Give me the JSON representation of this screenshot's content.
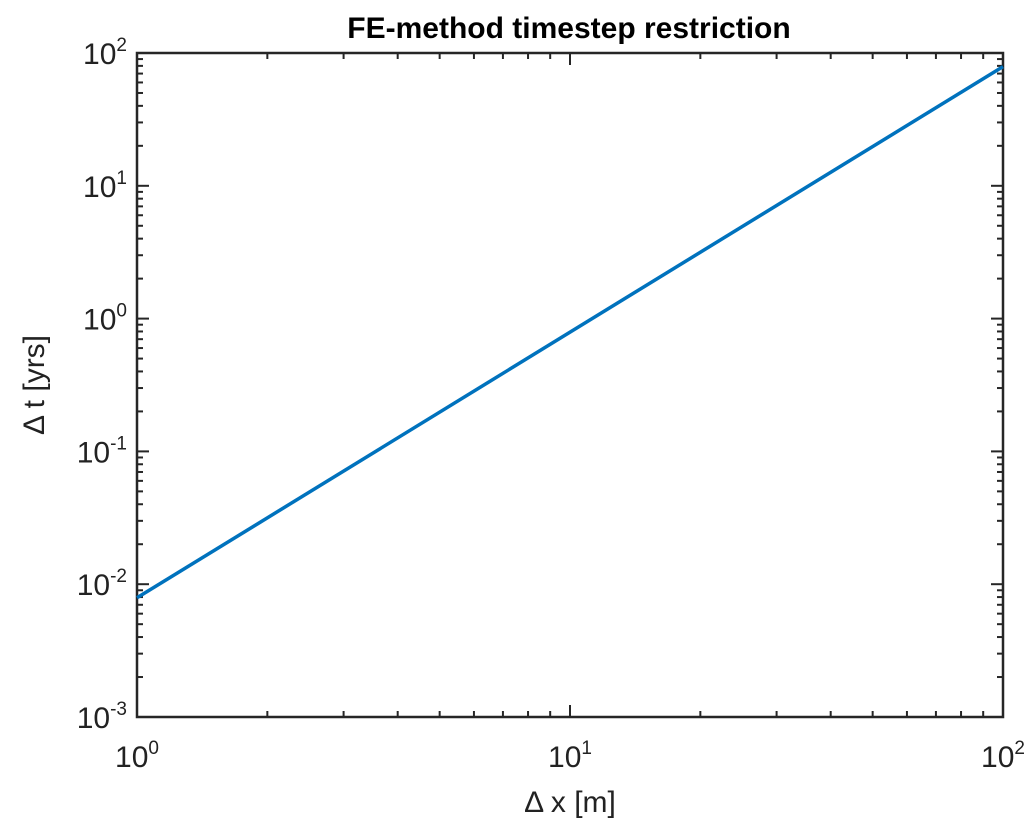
{
  "chart_data": {
    "type": "line",
    "title": "FE-method timestep restriction",
    "xlabel": "Δ x [m]",
    "ylabel": "Δ t [yrs]",
    "xscale": "log",
    "yscale": "log",
    "xlim": [
      1,
      100
    ],
    "ylim": [
      0.001,
      100
    ],
    "grid": false,
    "x_ticks": [
      {
        "base": "10",
        "exp": "0"
      },
      {
        "base": "10",
        "exp": "1"
      },
      {
        "base": "10",
        "exp": "2"
      }
    ],
    "y_ticks": [
      {
        "base": "10",
        "exp": "-3"
      },
      {
        "base": "10",
        "exp": "-2"
      },
      {
        "base": "10",
        "exp": "-1"
      },
      {
        "base": "10",
        "exp": "0"
      },
      {
        "base": "10",
        "exp": "1"
      },
      {
        "base": "10",
        "exp": "2"
      }
    ],
    "series": [
      {
        "color": "#0072BD",
        "x": [
          1,
          100
        ],
        "y": [
          0.0079,
          79
        ]
      }
    ]
  }
}
